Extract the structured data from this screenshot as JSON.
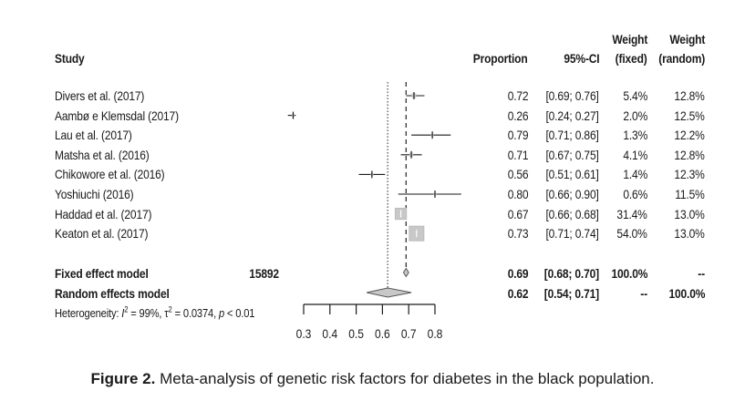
{
  "chart_data": {
    "type": "forest",
    "title": "",
    "xlabel": "",
    "xlim": [
      0.3,
      0.8
    ],
    "xticks": [
      "0.3",
      "0.4",
      "0.5",
      "0.6",
      "0.7",
      "0.8"
    ],
    "xtick_values": [
      0.3,
      0.4,
      0.5,
      0.6,
      0.7,
      0.8
    ],
    "columns": {
      "study": "Study",
      "proportion": "Proportion",
      "ci": "95%-CI",
      "weight_fixed": [
        "Weight",
        "(fixed)"
      ],
      "weight_random": [
        "Weight",
        "(random)"
      ]
    },
    "studies": [
      {
        "name": "Divers et al. (2017)",
        "proportion": 0.72,
        "lower": 0.69,
        "upper": 0.76,
        "prop_label": "0.72",
        "ci_label": "[0.69; 0.76]",
        "weight_fixed": "5.4%",
        "weight_random": "12.8%",
        "weight_fixed_value": 5.4
      },
      {
        "name": "Aambø e Klemsdal (2017)",
        "proportion": 0.26,
        "lower": 0.24,
        "upper": 0.27,
        "prop_label": "0.26",
        "ci_label": "[0.24; 0.27]",
        "weight_fixed": "2.0%",
        "weight_random": "12.5%",
        "weight_fixed_value": 2.0
      },
      {
        "name": "Lau et al. (2017)",
        "proportion": 0.79,
        "lower": 0.71,
        "upper": 0.86,
        "prop_label": "0.79",
        "ci_label": "[0.71; 0.86]",
        "weight_fixed": "1.3%",
        "weight_random": "12.2%",
        "weight_fixed_value": 1.3
      },
      {
        "name": "Matsha et al. (2016)",
        "proportion": 0.71,
        "lower": 0.67,
        "upper": 0.75,
        "prop_label": "0.71",
        "ci_label": "[0.67; 0.75]",
        "weight_fixed": "4.1%",
        "weight_random": "12.8%",
        "weight_fixed_value": 4.1
      },
      {
        "name": "Chikowore et al. (2016)",
        "proportion": 0.56,
        "lower": 0.51,
        "upper": 0.61,
        "prop_label": "0.56",
        "ci_label": "[0.51; 0.61]",
        "weight_fixed": "1.4%",
        "weight_random": "12.3%",
        "weight_fixed_value": 1.4
      },
      {
        "name": "Yoshiuchi (2016)",
        "proportion": 0.8,
        "lower": 0.66,
        "upper": 0.9,
        "prop_label": "0.80",
        "ci_label": "[0.66; 0.90]",
        "weight_fixed": "0.6%",
        "weight_random": "11.5%",
        "weight_fixed_value": 0.6
      },
      {
        "name": "Haddad et al. (2017)",
        "proportion": 0.67,
        "lower": 0.66,
        "upper": 0.68,
        "prop_label": "0.67",
        "ci_label": "[0.66; 0.68]",
        "weight_fixed": "31.4%",
        "weight_random": "13.0%",
        "weight_fixed_value": 31.4
      },
      {
        "name": "Keaton et al. (2017)",
        "proportion": 0.73,
        "lower": 0.71,
        "upper": 0.74,
        "prop_label": "0.73",
        "ci_label": "[0.71; 0.74]",
        "weight_fixed": "54.0%",
        "weight_random": "13.0%",
        "weight_fixed_value": 54.0
      }
    ],
    "fixed_model": {
      "name": "Fixed effect model",
      "total": "15892",
      "proportion": 0.69,
      "lower": 0.68,
      "upper": 0.7,
      "prop_label": "0.69",
      "ci_label": "[0.68; 0.70]",
      "weight_fixed": "100.0%",
      "weight_random": "--"
    },
    "random_model": {
      "name": "Random effects model",
      "proportion": 0.62,
      "lower": 0.54,
      "upper": 0.71,
      "prop_label": "0.62",
      "ci_label": "[0.54; 0.71]",
      "weight_fixed": "--",
      "weight_random": "100.0%"
    },
    "heterogeneity": {
      "prefix": "Heterogeneity: ",
      "i2_sym": "I",
      "i2_val": " = 99%, ",
      "tau2_sym": "τ",
      "tau2_val": " = 0.0374, ",
      "p_sym": "p",
      "p_val": " < 0.01"
    },
    "colors": {
      "ink": "#1a1a1a",
      "square_fill": "#c8c8c8",
      "diamond_fill": "#c8c8c8"
    }
  },
  "caption": {
    "label": "Figure 2.",
    "text": " Meta-analysis of genetic risk factors for diabetes in the black population."
  }
}
